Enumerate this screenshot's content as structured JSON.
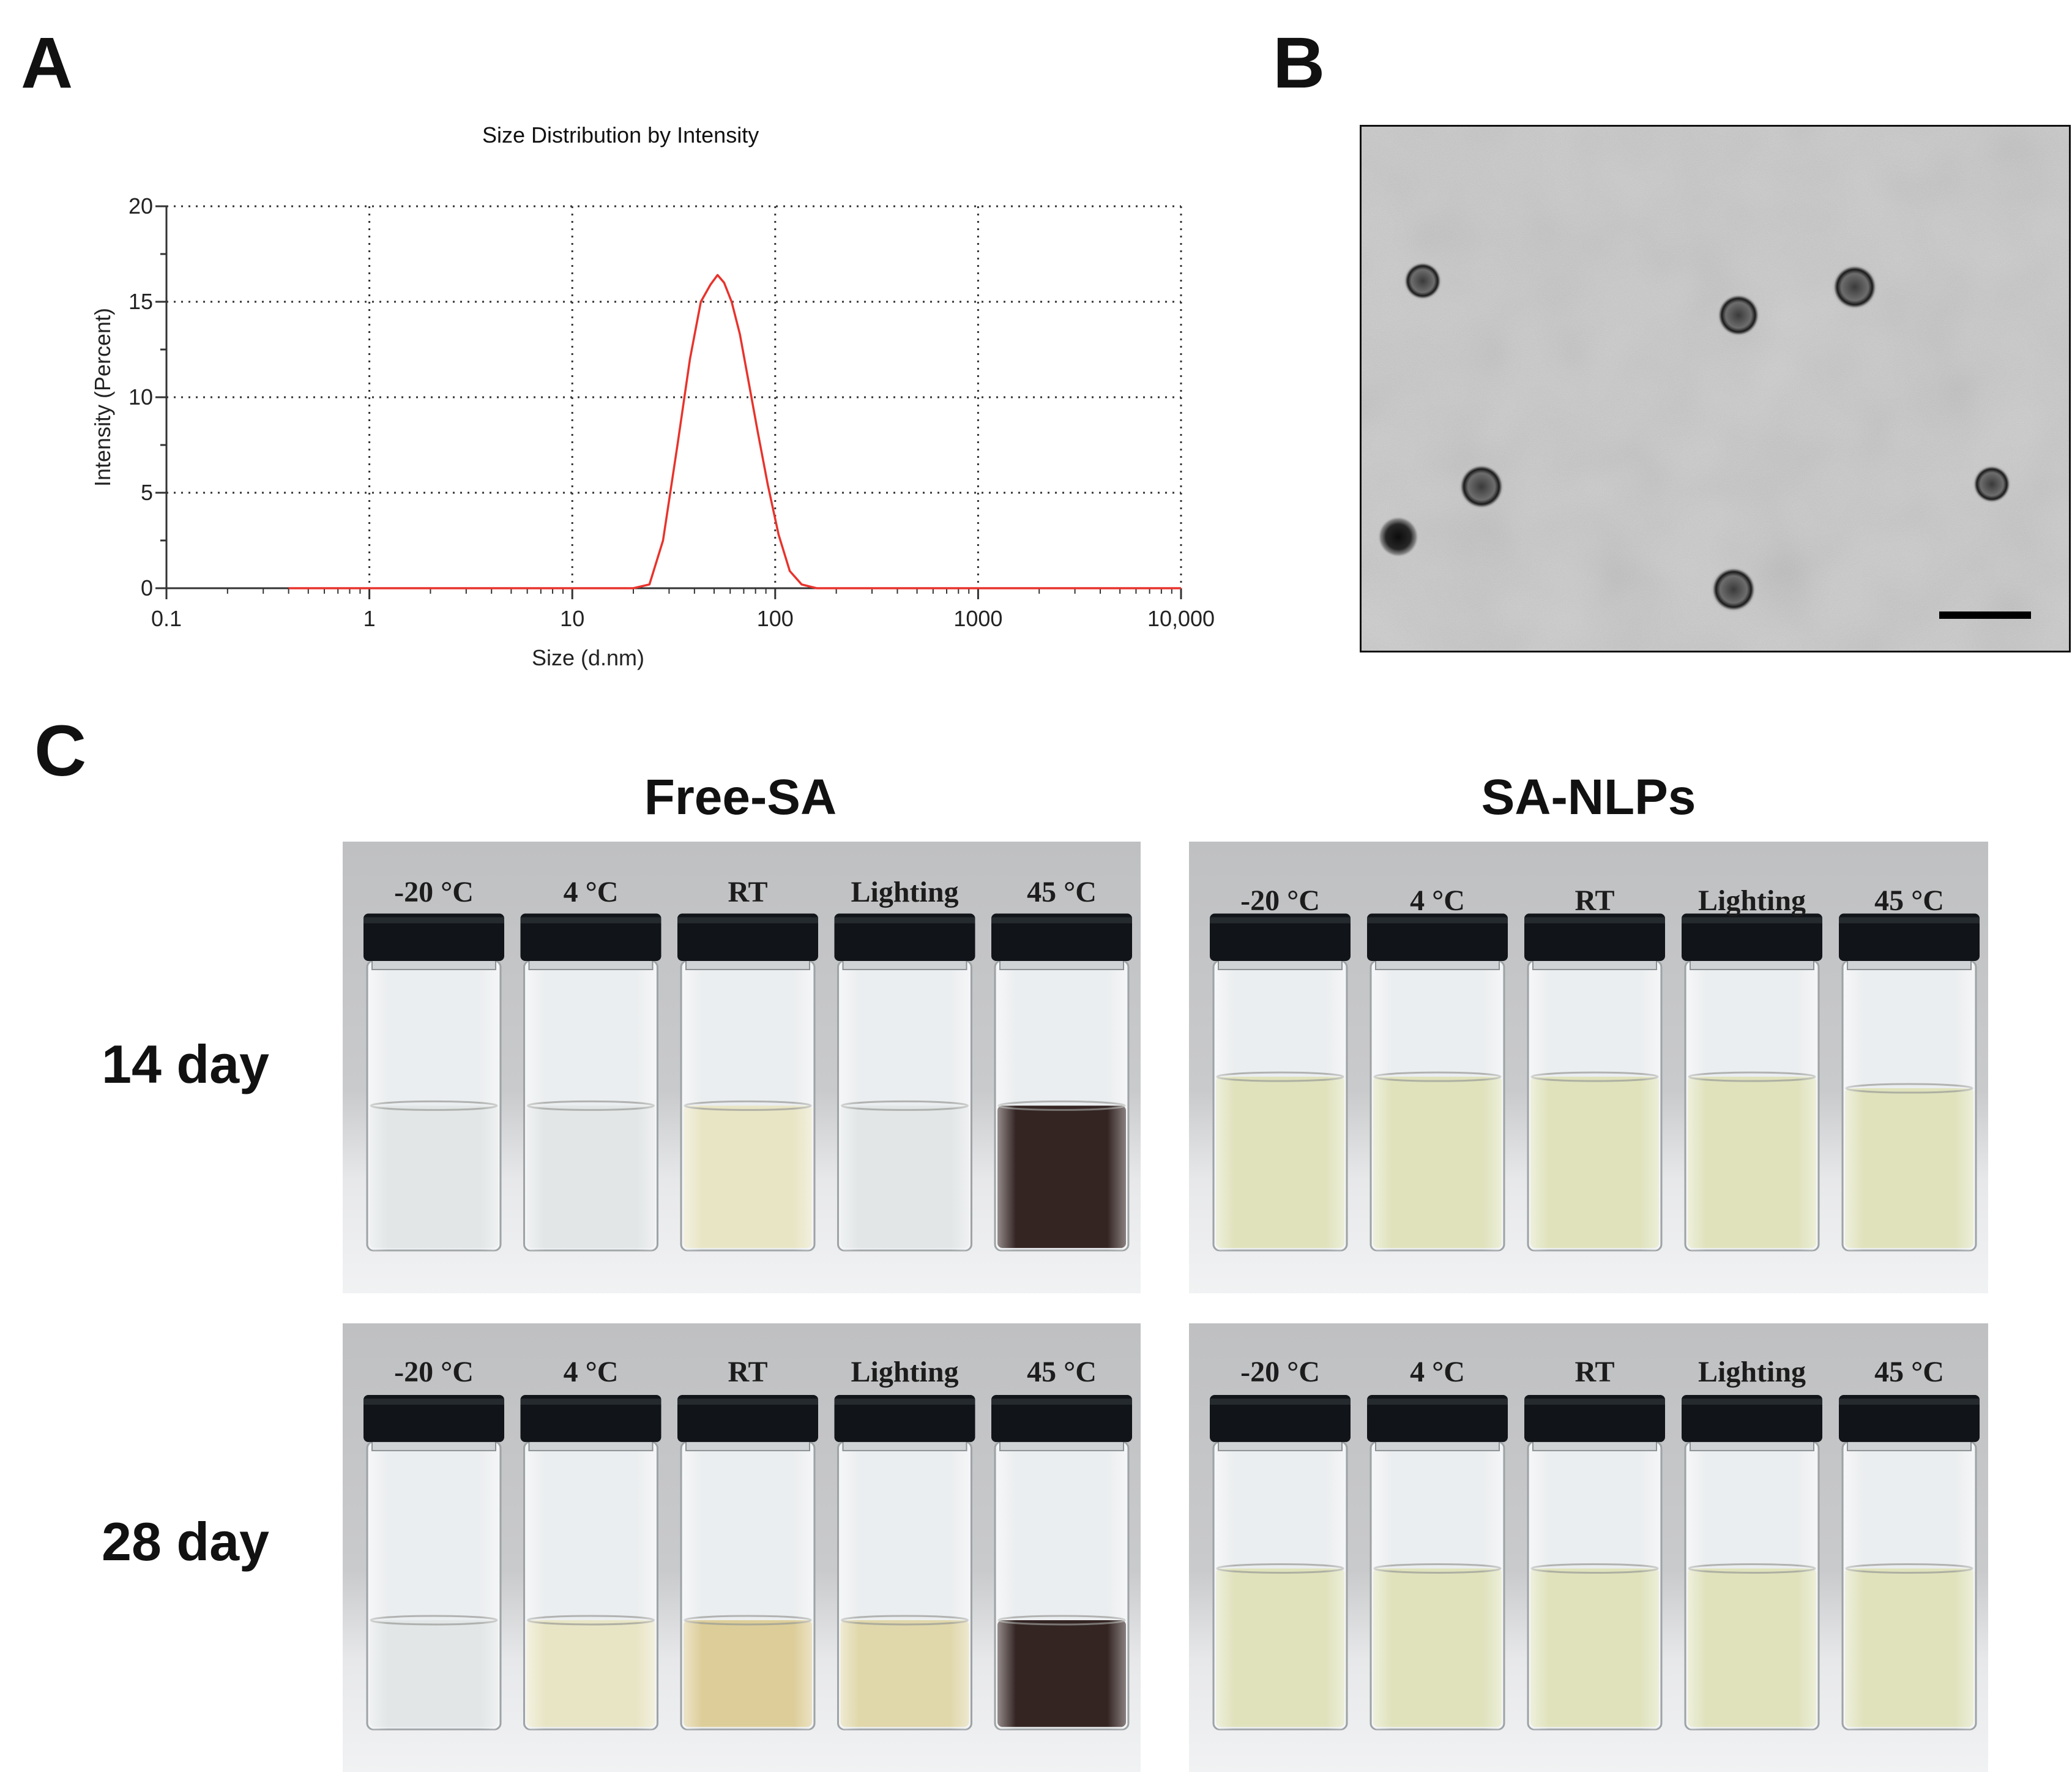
{
  "panel_labels": {
    "a": "A",
    "b": "B",
    "c": "C"
  },
  "chart_data": {
    "type": "line",
    "title": "Size Distribution by Intensity",
    "xlabel": "Size (d.nm)",
    "ylabel": "Intensity (Percent)",
    "xscale": "log",
    "xlim": [
      0.1,
      10000
    ],
    "ylim": [
      0,
      20
    ],
    "xticks": [
      {
        "value": 0.1,
        "label": "0.1"
      },
      {
        "value": 1,
        "label": "1"
      },
      {
        "value": 10,
        "label": "10"
      },
      {
        "value": 100,
        "label": "100"
      },
      {
        "value": 1000,
        "label": "1000"
      },
      {
        "value": 10000,
        "label": "10,000"
      }
    ],
    "yticks": [
      {
        "value": 0,
        "label": "0"
      },
      {
        "value": 5,
        "label": "5"
      },
      {
        "value": 10,
        "label": "10"
      },
      {
        "value": 15,
        "label": "15"
      },
      {
        "value": 20,
        "label": "20"
      }
    ],
    "grid": "dotted",
    "series_color": "#e8332c",
    "x": [
      0.4,
      1,
      5,
      20,
      24,
      28,
      33,
      38,
      43,
      48,
      52,
      56,
      61,
      67,
      74,
      82,
      92,
      104,
      118,
      135,
      160,
      250,
      1000,
      10000
    ],
    "y": [
      0,
      0,
      0,
      0,
      0.2,
      2.5,
      7.5,
      12.0,
      15.0,
      15.9,
      16.4,
      16.0,
      15.0,
      13.3,
      10.8,
      8.2,
      5.4,
      2.8,
      0.9,
      0.2,
      0,
      0,
      0,
      0
    ]
  },
  "panel_c": {
    "groups": [
      "Free-SA",
      "SA-NLPs"
    ],
    "rows": [
      "14 day",
      "28 day"
    ],
    "conditions": [
      "-20 °C",
      "4 °C",
      "RT",
      "Lighting",
      "45 °C"
    ]
  },
  "colors": {
    "clear": "#dfe3e4",
    "pale_yellow": "#e6e2bf",
    "yellow": "#ddd3a2",
    "amber": "#d9c88e",
    "dark_brown": "#1e0d0b",
    "nlp_green": "#dcdfb5",
    "cap": "#111418",
    "bench": "#d3d4d6"
  }
}
